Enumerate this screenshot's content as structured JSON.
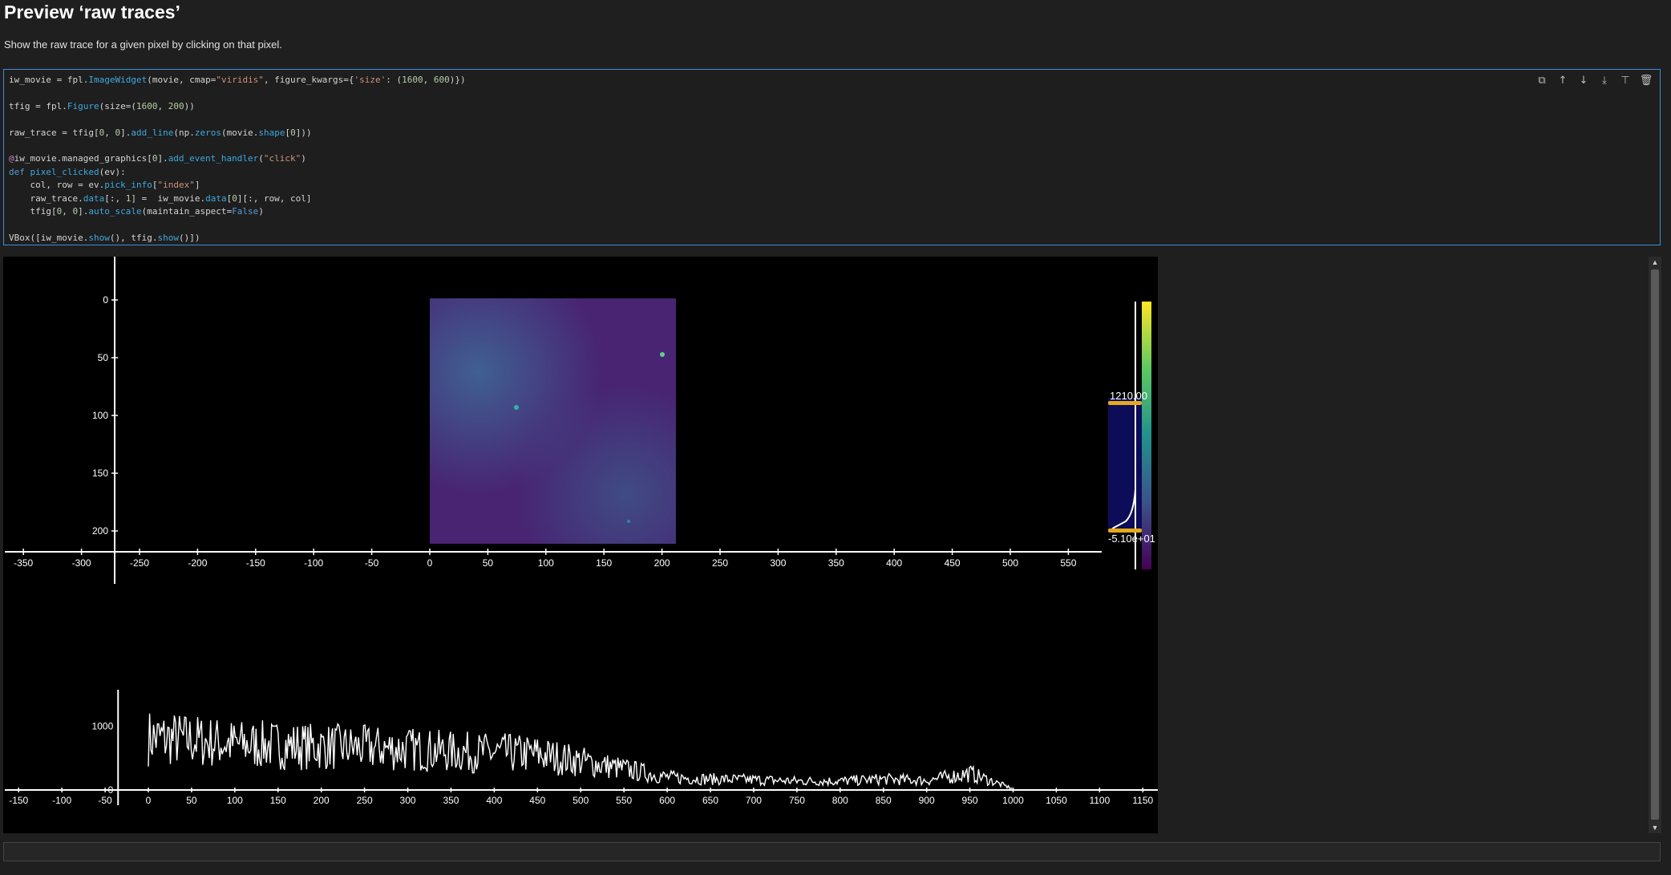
{
  "markdown": {
    "title": "Preview ‘raw traces’",
    "description": "Show the raw trace for a given pixel by clicking on that pixel."
  },
  "code_cell": {
    "toolbar_icons": [
      "copy-icon",
      "move-up-icon",
      "move-down-icon",
      "insert-below-icon",
      "split-cell-icon",
      "delete-icon"
    ]
  },
  "image_widget": {
    "x_ticks": [
      "-350",
      "-300",
      "-250",
      "-200",
      "-150",
      "-100",
      "-50",
      "0",
      "50",
      "100",
      "150",
      "200",
      "250",
      "300",
      "350",
      "400",
      "450",
      "500",
      "550"
    ],
    "y_ticks": [
      "0",
      "50",
      "100",
      "150",
      "200"
    ],
    "colormap": "viridis",
    "vmax_label": "1210.00",
    "vmin_label": "-5.10e+01"
  },
  "trace_figure": {
    "x_ticks": [
      "-150",
      "-100",
      "-50",
      "0",
      "50",
      "100",
      "150",
      "200",
      "250",
      "300",
      "350",
      "400",
      "450",
      "500",
      "550",
      "600",
      "650",
      "700",
      "750",
      "800",
      "850",
      "900",
      "950",
      "1000",
      "1050",
      "1100",
      "1150"
    ],
    "y_ticks": [
      "1000",
      "0"
    ]
  },
  "chart_data": {
    "type": "line",
    "x": [
      0,
      50,
      100,
      150,
      200,
      250,
      300,
      350,
      400,
      450,
      500,
      550,
      600,
      650,
      700,
      750,
      800,
      850,
      900,
      950,
      1000
    ],
    "values": [
      820,
      780,
      720,
      700,
      680,
      660,
      640,
      600,
      580,
      560,
      450,
      330,
      200,
      170,
      160,
      140,
      140,
      170,
      150,
      260,
      20
    ],
    "xlabel": "",
    "ylabel": "",
    "xlim": [
      -150,
      1150
    ],
    "ylim": [
      0,
      1300
    ],
    "grid": false
  }
}
